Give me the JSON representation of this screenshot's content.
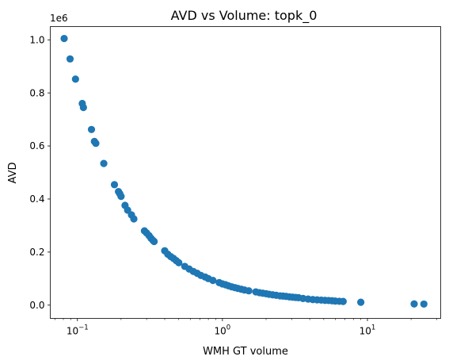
{
  "chart_data": {
    "type": "scatter",
    "title": "AVD vs Volume: topk_0",
    "xlabel": "WMH GT volume",
    "ylabel": "AVD",
    "x_scale": "log",
    "xlim": [
      0.065,
      32
    ],
    "ylim": [
      -50000,
      1050000
    ],
    "y_offset_text": "1e6",
    "y_tick_values": [
      0,
      200000,
      400000,
      600000,
      800000,
      1000000
    ],
    "y_tick_labels": [
      "0.0",
      "0.2",
      "0.4",
      "0.6",
      "0.8",
      "1.0"
    ],
    "x_major_ticks": [
      {
        "value": 0.1,
        "base": "10",
        "exp": "−1"
      },
      {
        "value": 1,
        "base": "10",
        "exp": "0"
      },
      {
        "value": 10,
        "base": "10",
        "exp": "1"
      }
    ],
    "grid": false,
    "marker_color": "#1f77b4",
    "points": [
      [
        0.081,
        1005000
      ],
      [
        0.089,
        928000
      ],
      [
        0.097,
        852000
      ],
      [
        0.108,
        760000
      ],
      [
        0.11,
        745000
      ],
      [
        0.125,
        662000
      ],
      [
        0.131,
        617000
      ],
      [
        0.134,
        610000
      ],
      [
        0.152,
        534000
      ],
      [
        0.18,
        454000
      ],
      [
        0.192,
        428000
      ],
      [
        0.196,
        420000
      ],
      [
        0.2,
        410000
      ],
      [
        0.213,
        376000
      ],
      [
        0.222,
        358000
      ],
      [
        0.236,
        340000
      ],
      [
        0.245,
        325000
      ],
      [
        0.29,
        280000
      ],
      [
        0.3,
        272000
      ],
      [
        0.312,
        262000
      ],
      [
        0.322,
        252000
      ],
      [
        0.332,
        244000
      ],
      [
        0.338,
        240000
      ],
      [
        0.4,
        205000
      ],
      [
        0.42,
        192000
      ],
      [
        0.44,
        183000
      ],
      [
        0.46,
        176000
      ],
      [
        0.48,
        168000
      ],
      [
        0.5,
        160000
      ],
      [
        0.55,
        146000
      ],
      [
        0.59,
        136000
      ],
      [
        0.63,
        127000
      ],
      [
        0.67,
        120000
      ],
      [
        0.71,
        112000
      ],
      [
        0.76,
        106000
      ],
      [
        0.8,
        100000
      ],
      [
        0.86,
        93000
      ],
      [
        0.95,
        85000
      ],
      [
        1.0,
        80000
      ],
      [
        1.05,
        77000
      ],
      [
        1.1,
        73000
      ],
      [
        1.16,
        69000
      ],
      [
        1.22,
        66000
      ],
      [
        1.28,
        63000
      ],
      [
        1.35,
        60000
      ],
      [
        1.42,
        57000
      ],
      [
        1.52,
        54000
      ],
      [
        1.7,
        50000
      ],
      [
        1.8,
        47000
      ],
      [
        1.9,
        45000
      ],
      [
        2.0,
        43000
      ],
      [
        2.1,
        41000
      ],
      [
        2.22,
        39000
      ],
      [
        2.35,
        37000
      ],
      [
        2.5,
        35000
      ],
      [
        2.62,
        34000
      ],
      [
        2.75,
        33000
      ],
      [
        2.9,
        31000
      ],
      [
        3.05,
        30000
      ],
      [
        3.2,
        29000
      ],
      [
        3.35,
        28000
      ],
      [
        3.6,
        25000
      ],
      [
        3.9,
        23000
      ],
      [
        4.2,
        21000
      ],
      [
        4.5,
        20000
      ],
      [
        4.8,
        19000
      ],
      [
        5.1,
        18000
      ],
      [
        5.4,
        17500
      ],
      [
        5.7,
        16500
      ],
      [
        6.0,
        15500
      ],
      [
        6.4,
        14500
      ],
      [
        6.8,
        14000
      ],
      [
        9.0,
        11000
      ],
      [
        21.0,
        4500
      ],
      [
        24.5,
        4000
      ]
    ]
  }
}
